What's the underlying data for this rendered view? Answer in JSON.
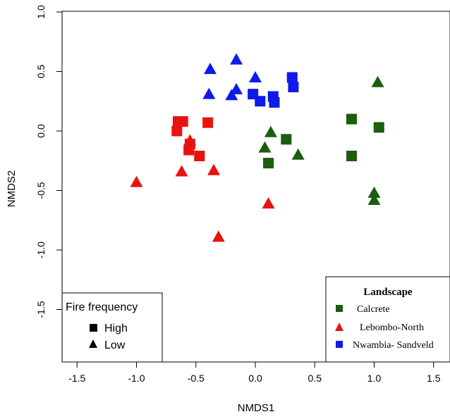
{
  "chart_data": {
    "type": "scatter",
    "xlabel": "NMDS1",
    "ylabel": "NMDS2",
    "xlim": [
      -1.65,
      1.65
    ],
    "ylim": [
      -1.95,
      1.0
    ],
    "xticks": [
      "-1.5",
      "-1.0",
      "-0.5",
      "0.0",
      "0.5",
      "1.0",
      "1.5"
    ],
    "xtick_values": [
      -1.5,
      -1.0,
      -0.5,
      0.0,
      0.5,
      1.0,
      1.5
    ],
    "yticks": [
      "1.0",
      "0.5",
      "0.0",
      "-0.5",
      "-1.0",
      "-1.5"
    ],
    "ytick_values": [
      1.0,
      0.5,
      0.0,
      -0.5,
      -1.0,
      -1.5
    ],
    "grid": false,
    "series": [
      {
        "name": "Calcrete",
        "color": "#1a5e0e",
        "points": [
          {
            "x": 0.81,
            "y": 0.1,
            "marker": "square"
          },
          {
            "x": 1.04,
            "y": 0.03,
            "marker": "square"
          },
          {
            "x": 0.81,
            "y": -0.21,
            "marker": "square"
          },
          {
            "x": 0.26,
            "y": -0.07,
            "marker": "square"
          },
          {
            "x": 0.11,
            "y": -0.27,
            "marker": "square"
          },
          {
            "x": 0.13,
            "y": -0.01,
            "marker": "triangle"
          },
          {
            "x": 0.08,
            "y": -0.14,
            "marker": "triangle"
          },
          {
            "x": 0.36,
            "y": -0.2,
            "marker": "triangle"
          },
          {
            "x": 1.03,
            "y": 0.41,
            "marker": "triangle"
          },
          {
            "x": 1.0,
            "y": -0.52,
            "marker": "triangle"
          },
          {
            "x": 1.0,
            "y": -0.58,
            "marker": "triangle"
          }
        ]
      },
      {
        "name": "Lebombo-North",
        "color": "#e8130f",
        "points": [
          {
            "x": -0.65,
            "y": 0.08,
            "marker": "square"
          },
          {
            "x": -0.61,
            "y": 0.08,
            "marker": "square"
          },
          {
            "x": -0.66,
            "y": 0.0,
            "marker": "square"
          },
          {
            "x": -0.4,
            "y": 0.07,
            "marker": "square"
          },
          {
            "x": -0.55,
            "y": -0.11,
            "marker": "square"
          },
          {
            "x": -0.56,
            "y": -0.16,
            "marker": "square"
          },
          {
            "x": -0.47,
            "y": -0.21,
            "marker": "square"
          },
          {
            "x": -0.55,
            "y": -0.08,
            "marker": "triangle"
          },
          {
            "x": -0.62,
            "y": -0.34,
            "marker": "triangle"
          },
          {
            "x": -0.35,
            "y": -0.33,
            "marker": "triangle"
          },
          {
            "x": -1.0,
            "y": -0.43,
            "marker": "triangle"
          },
          {
            "x": 0.11,
            "y": -0.61,
            "marker": "triangle"
          },
          {
            "x": -0.31,
            "y": -0.89,
            "marker": "triangle"
          }
        ]
      },
      {
        "name": "Nwambia- Sandveld",
        "color": "#1019e8",
        "points": [
          {
            "x": -0.38,
            "y": 0.52,
            "marker": "triangle"
          },
          {
            "x": -0.16,
            "y": 0.6,
            "marker": "triangle"
          },
          {
            "x": 0.0,
            "y": 0.45,
            "marker": "triangle"
          },
          {
            "x": -0.39,
            "y": 0.31,
            "marker": "triangle"
          },
          {
            "x": -0.2,
            "y": 0.3,
            "marker": "triangle"
          },
          {
            "x": -0.16,
            "y": 0.35,
            "marker": "triangle"
          },
          {
            "x": 0.31,
            "y": 0.45,
            "marker": "square"
          },
          {
            "x": 0.32,
            "y": 0.37,
            "marker": "square"
          },
          {
            "x": -0.02,
            "y": 0.31,
            "marker": "square"
          },
          {
            "x": 0.15,
            "y": 0.29,
            "marker": "square"
          },
          {
            "x": 0.04,
            "y": 0.25,
            "marker": "square"
          },
          {
            "x": 0.16,
            "y": 0.24,
            "marker": "square"
          }
        ]
      }
    ],
    "legend_landscape": {
      "title": "Landscape",
      "placement": "bottom-right",
      "entries": [
        {
          "label": "Calcrete",
          "color": "#1a5e0e"
        },
        {
          "label": "Lebombo-North",
          "color": "#e8130f"
        },
        {
          "label": "Nwambia- Sandveld",
          "color": "#1019e8"
        }
      ]
    },
    "legend_fire": {
      "title": "Fire frequency",
      "placement": "bottom-left",
      "entries": [
        {
          "label": "High",
          "marker": "square"
        },
        {
          "label": "Low",
          "marker": "triangle"
        }
      ]
    }
  }
}
